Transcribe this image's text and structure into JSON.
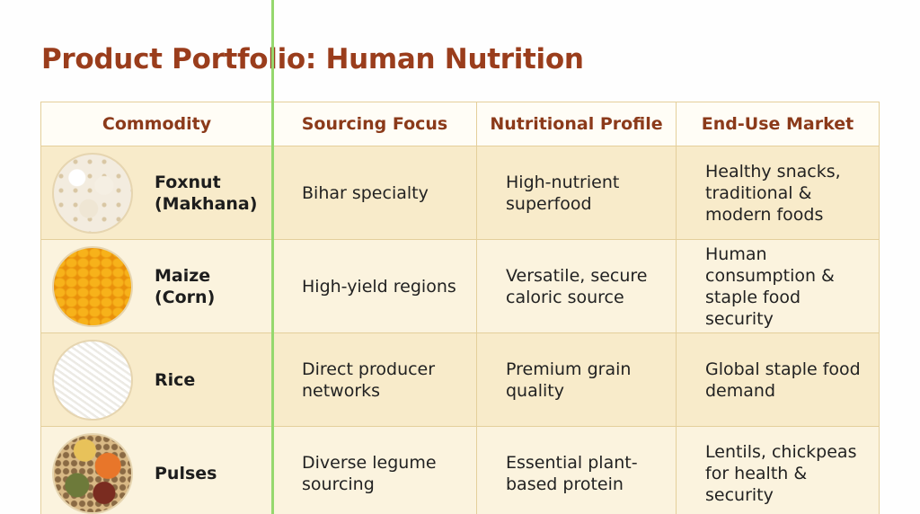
{
  "header": {
    "title": "Product Portfolio: Human Nutrition"
  },
  "table": {
    "columns": [
      "Commodity",
      "Sourcing Focus",
      "Nutritional Profile",
      "End-Use Market"
    ],
    "rows": [
      [
        "Foxnut (Makhana)",
        "Bihar specialty",
        "High-nutrient superfood",
        "Healthy snacks, traditional & modern foods"
      ],
      [
        "Maize (Corn)",
        "High-yield regions",
        "Versatile, secure caloric source",
        "Human consumption & staple food security"
      ],
      [
        "Rice",
        "Direct producer networks",
        "Premium grain quality",
        "Global staple food demand"
      ],
      [
        "Pulses",
        "Diverse legume sourcing",
        "Essential plant-based protein",
        "Lentils, chickpeas for health & security"
      ]
    ]
  }
}
